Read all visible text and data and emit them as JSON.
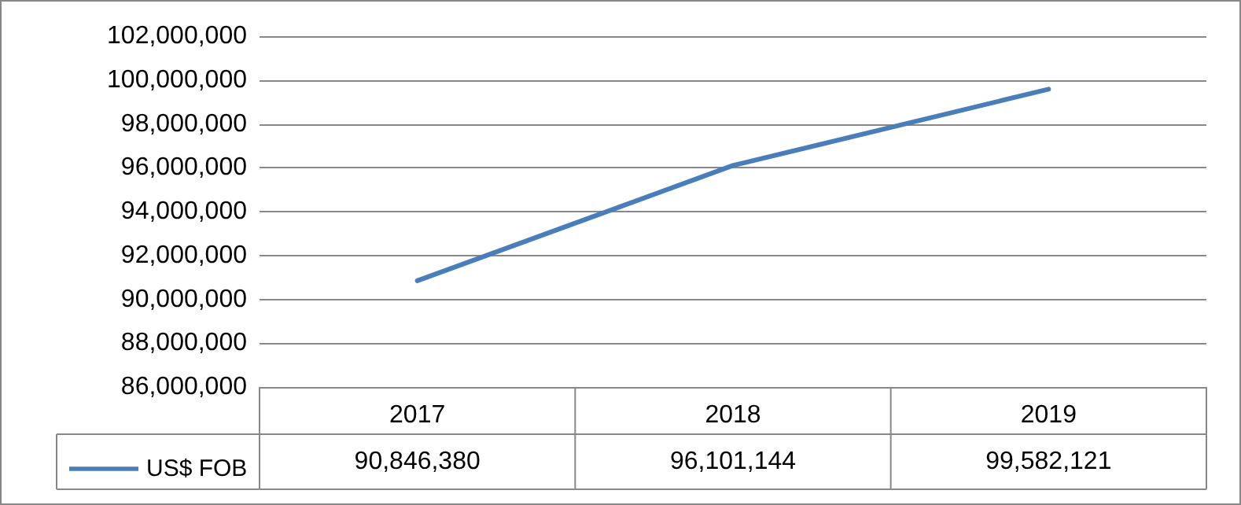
{
  "chart_data": {
    "type": "line",
    "categories": [
      "2017",
      "2018",
      "2019"
    ],
    "series": [
      {
        "name": "US$ FOB",
        "color": "#4a7ebb",
        "values": [
          90846380,
          96101144,
          99582121
        ],
        "value_labels": [
          "90,846,380",
          "96,101,144",
          "99,582,121"
        ]
      }
    ],
    "ylim": [
      86000000,
      102000000
    ],
    "yticks": [
      {
        "value": 86000000,
        "label": "86,000,000"
      },
      {
        "value": 88000000,
        "label": "88,000,000"
      },
      {
        "value": 90000000,
        "label": "90,000,000"
      },
      {
        "value": 92000000,
        "label": "92,000,000"
      },
      {
        "value": 94000000,
        "label": "94,000,000"
      },
      {
        "value": 96000000,
        "label": "96,000,000"
      },
      {
        "value": 98000000,
        "label": "98,000,000"
      },
      {
        "value": 100000000,
        "label": "100,000,000"
      },
      {
        "value": 102000000,
        "label": "102,000,000"
      }
    ],
    "grid": "y",
    "legend": "bottom left",
    "marker": "none",
    "line_style": "solid"
  }
}
